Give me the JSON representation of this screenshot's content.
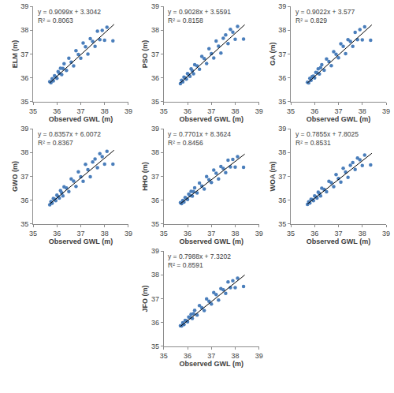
{
  "chart_data": [
    {
      "type": "scatter",
      "x_label": "Observed GWL (m)",
      "y_label": "ELM (m)",
      "color": "#4a7ebb",
      "marker": "circle",
      "grid": false,
      "xlim": [
        35,
        39
      ],
      "ylim": [
        35,
        39
      ],
      "xticks": [
        35,
        36,
        37,
        38,
        39
      ],
      "yticks": [
        35,
        36,
        37,
        38,
        39
      ],
      "annotations": [
        "y = 0.9099x + 3.3042",
        "R² = 0.8063"
      ],
      "trendline": {
        "x": [
          35.7,
          38.4
        ],
        "y": [
          35.788,
          38.244
        ]
      },
      "x": [
        35.7,
        35.75,
        35.8,
        35.85,
        35.9,
        35.95,
        36.0,
        36.05,
        36.1,
        36.15,
        36.2,
        36.25,
        36.3,
        36.4,
        36.5,
        36.6,
        36.7,
        36.8,
        36.9,
        37.0,
        37.1,
        37.2,
        37.3,
        37.4,
        37.5,
        37.6,
        37.7,
        37.8,
        37.9,
        38.0,
        38.1,
        38.35
      ],
      "y": [
        35.84,
        35.8,
        35.96,
        35.87,
        36.09,
        36.04,
        35.98,
        36.26,
        36.19,
        36.4,
        36.14,
        36.39,
        36.59,
        36.31,
        36.82,
        36.66,
        36.5,
        37.14,
        36.98,
        36.82,
        37.46,
        37.3,
        37.0,
        37.64,
        37.53,
        37.32,
        37.96,
        37.6,
        37.99,
        37.58,
        38.12,
        37.55
      ]
    },
    {
      "type": "scatter",
      "x_label": "Observed GWL (m)",
      "y_label": "PSO (m)",
      "color": "#4a7ebb",
      "marker": "circle",
      "grid": false,
      "xlim": [
        35,
        39
      ],
      "ylim": [
        35,
        39
      ],
      "xticks": [
        35,
        36,
        37,
        38,
        39
      ],
      "yticks": [
        35,
        36,
        37,
        38,
        39
      ],
      "annotations": [
        "y = 0.9028x + 3.5591",
        "R² = 0.8158"
      ],
      "trendline": {
        "x": [
          35.7,
          38.4
        ],
        "y": [
          35.789,
          38.227
        ]
      },
      "x": [
        35.7,
        35.75,
        35.8,
        35.85,
        35.9,
        35.95,
        36.0,
        36.05,
        36.1,
        36.15,
        36.2,
        36.25,
        36.3,
        36.4,
        36.5,
        36.6,
        36.7,
        36.8,
        36.9,
        37.0,
        37.1,
        37.2,
        37.3,
        37.4,
        37.5,
        37.6,
        37.7,
        37.8,
        37.9,
        38.0,
        38.1,
        38.35
      ],
      "y": [
        35.76,
        35.9,
        35.83,
        36.03,
        36.0,
        35.95,
        36.18,
        36.13,
        36.06,
        36.38,
        36.29,
        36.17,
        36.55,
        36.5,
        36.36,
        36.9,
        36.81,
        36.6,
        37.22,
        37.01,
        36.83,
        37.54,
        37.33,
        37.04,
        37.66,
        37.8,
        37.44,
        38.03,
        37.92,
        37.62,
        38.16,
        37.63
      ]
    },
    {
      "type": "scatter",
      "x_label": "Observed GWL (m)",
      "y_label": "GA (m)",
      "color": "#4a7ebb",
      "marker": "circle",
      "grid": false,
      "xlim": [
        35,
        39
      ],
      "ylim": [
        35,
        39
      ],
      "xticks": [
        35,
        36,
        37,
        38,
        39
      ],
      "yticks": [
        35,
        36,
        37,
        38,
        39
      ],
      "annotations": [
        "y = 0.9022x + 3.577",
        "R² = 0.829"
      ],
      "trendline": {
        "x": [
          35.7,
          38.4
        ],
        "y": [
          35.786,
          38.222
        ]
      },
      "x": [
        35.7,
        35.75,
        35.8,
        35.85,
        35.9,
        35.95,
        36.0,
        36.05,
        36.1,
        36.15,
        36.2,
        36.25,
        36.3,
        36.4,
        36.5,
        36.6,
        36.7,
        36.8,
        36.9,
        37.0,
        37.1,
        37.2,
        37.3,
        37.4,
        37.5,
        37.6,
        37.7,
        37.8,
        37.9,
        38.0,
        38.1,
        38.35
      ],
      "y": [
        35.81,
        35.79,
        35.98,
        35.9,
        36.05,
        36.07,
        36.0,
        36.23,
        36.21,
        36.38,
        36.16,
        36.43,
        36.55,
        36.32,
        36.79,
        36.68,
        36.51,
        37.1,
        36.99,
        36.84,
        37.43,
        37.32,
        37.01,
        37.6,
        37.53,
        37.32,
        37.91,
        37.6,
        38.02,
        37.59,
        38.14,
        37.58
      ]
    },
    {
      "type": "scatter",
      "x_label": "Observed GWL (m)",
      "y_label": "GWO (m)",
      "color": "#4a7ebb",
      "marker": "circle",
      "grid": false,
      "xlim": [
        35,
        39
      ],
      "ylim": [
        35,
        39
      ],
      "xticks": [
        35,
        36,
        37,
        38,
        39
      ],
      "yticks": [
        35,
        36,
        37,
        38,
        39
      ],
      "annotations": [
        "y = 0.8357x + 6.0072",
        "R² = 0.8367"
      ],
      "trendline": {
        "x": [
          35.7,
          38.4
        ],
        "y": [
          35.842,
          38.098
        ]
      },
      "x": [
        35.7,
        35.75,
        35.8,
        35.85,
        35.9,
        35.95,
        36.0,
        36.05,
        36.1,
        36.15,
        36.2,
        36.25,
        36.3,
        36.4,
        36.5,
        36.6,
        36.7,
        36.8,
        36.9,
        37.0,
        37.1,
        37.2,
        37.3,
        37.4,
        37.5,
        37.6,
        37.7,
        37.8,
        37.9,
        38.0,
        38.1,
        38.35
      ],
      "y": [
        35.81,
        35.94,
        35.87,
        36.07,
        36.04,
        35.98,
        36.21,
        36.15,
        36.09,
        36.4,
        36.31,
        36.18,
        36.56,
        36.51,
        36.36,
        36.89,
        36.8,
        36.58,
        37.19,
        36.98,
        36.79,
        37.5,
        37.28,
        36.98,
        37.6,
        37.73,
        37.36,
        37.95,
        37.83,
        37.51,
        38.05,
        37.51
      ]
    },
    {
      "type": "scatter",
      "x_label": "Observed GWL (m)",
      "y_label": "HHO (m)",
      "color": "#4a7ebb",
      "marker": "circle",
      "grid": false,
      "xlim": [
        35,
        39
      ],
      "ylim": [
        35,
        39
      ],
      "xticks": [
        35,
        36,
        37,
        38,
        39
      ],
      "yticks": [
        35,
        36,
        37,
        38,
        39
      ],
      "annotations": [
        "y = 0.7701x + 8.3624",
        "R² = 0.8456"
      ],
      "trendline": {
        "x": [
          35.7,
          38.4
        ],
        "y": [
          35.855,
          37.934
        ]
      },
      "x": [
        35.7,
        35.75,
        35.8,
        35.85,
        35.9,
        35.95,
        36.0,
        36.05,
        36.1,
        36.15,
        36.2,
        36.25,
        36.3,
        36.4,
        36.5,
        36.6,
        36.7,
        36.8,
        36.9,
        37.0,
        37.1,
        37.2,
        37.3,
        37.4,
        37.5,
        37.6,
        37.7,
        37.8,
        37.9,
        38.0,
        38.1,
        38.35
      ],
      "y": [
        35.9,
        35.86,
        35.99,
        35.92,
        36.11,
        36.07,
        36.03,
        36.25,
        36.2,
        36.37,
        36.17,
        36.36,
        36.52,
        36.3,
        36.72,
        36.59,
        36.47,
        36.99,
        36.86,
        36.74,
        37.26,
        37.13,
        36.89,
        37.41,
        37.33,
        37.16,
        37.68,
        37.4,
        37.71,
        37.39,
        37.83,
        37.38
      ]
    },
    {
      "type": "scatter",
      "x_label": "Observed GWL (m)",
      "y_label": "WOA (m)",
      "color": "#4a7ebb",
      "marker": "circle",
      "grid": false,
      "xlim": [
        35,
        39
      ],
      "ylim": [
        35,
        39
      ],
      "xticks": [
        35,
        36,
        37,
        38,
        39
      ],
      "yticks": [
        35,
        36,
        37,
        38,
        39
      ],
      "annotations": [
        "y = 0.7855x + 7.8025",
        "R² = 0.8531"
      ],
      "trendline": {
        "x": [
          35.7,
          38.4
        ],
        "y": [
          35.845,
          37.966
        ]
      },
      "x": [
        35.7,
        35.75,
        35.8,
        35.85,
        35.9,
        35.95,
        36.0,
        36.05,
        36.1,
        36.15,
        36.2,
        36.25,
        36.3,
        36.4,
        36.5,
        36.6,
        36.7,
        36.8,
        36.9,
        37.0,
        37.1,
        37.2,
        37.3,
        37.4,
        37.5,
        37.6,
        37.7,
        37.8,
        37.9,
        38.0,
        38.1,
        38.35
      ],
      "y": [
        35.82,
        35.93,
        35.88,
        36.04,
        36.02,
        35.98,
        36.18,
        36.14,
        36.09,
        36.34,
        36.28,
        36.18,
        36.5,
        36.45,
        36.35,
        36.79,
        36.73,
        36.57,
        37.07,
        36.91,
        36.76,
        37.34,
        37.18,
        36.96,
        37.46,
        37.58,
        37.29,
        37.77,
        37.69,
        37.45,
        37.89,
        37.48
      ]
    },
    {
      "type": "scatter",
      "x_label": "Observed GWL (m)",
      "y_label": "JFO (m)",
      "color": "#4a7ebb",
      "marker": "circle",
      "grid": false,
      "xlim": [
        35,
        39
      ],
      "ylim": [
        35,
        39
      ],
      "xticks": [
        35,
        36,
        37,
        38,
        39
      ],
      "yticks": [
        35,
        36,
        37,
        38,
        39
      ],
      "annotations": [
        "y = 0.7988x + 7.3202",
        "R² = 0.8591"
      ],
      "trendline": {
        "x": [
          35.7,
          38.4
        ],
        "y": [
          35.837,
          37.994
        ]
      },
      "x": [
        35.7,
        35.75,
        35.8,
        35.85,
        35.9,
        35.95,
        36.0,
        36.05,
        36.1,
        36.15,
        36.2,
        36.25,
        36.3,
        36.4,
        36.5,
        36.6,
        36.7,
        36.8,
        36.9,
        37.0,
        37.1,
        37.2,
        37.3,
        37.4,
        37.5,
        37.6,
        37.7,
        37.8,
        37.9,
        38.0,
        38.1,
        38.35
      ],
      "y": [
        35.87,
        35.86,
        35.99,
        35.92,
        36.09,
        36.07,
        36.03,
        36.23,
        36.21,
        36.35,
        36.17,
        36.37,
        36.51,
        36.31,
        36.71,
        36.62,
        36.5,
        36.99,
        36.89,
        36.78,
        37.26,
        37.17,
        36.94,
        37.42,
        37.37,
        37.22,
        37.7,
        37.46,
        37.75,
        37.46,
        37.86,
        37.51
      ]
    }
  ]
}
